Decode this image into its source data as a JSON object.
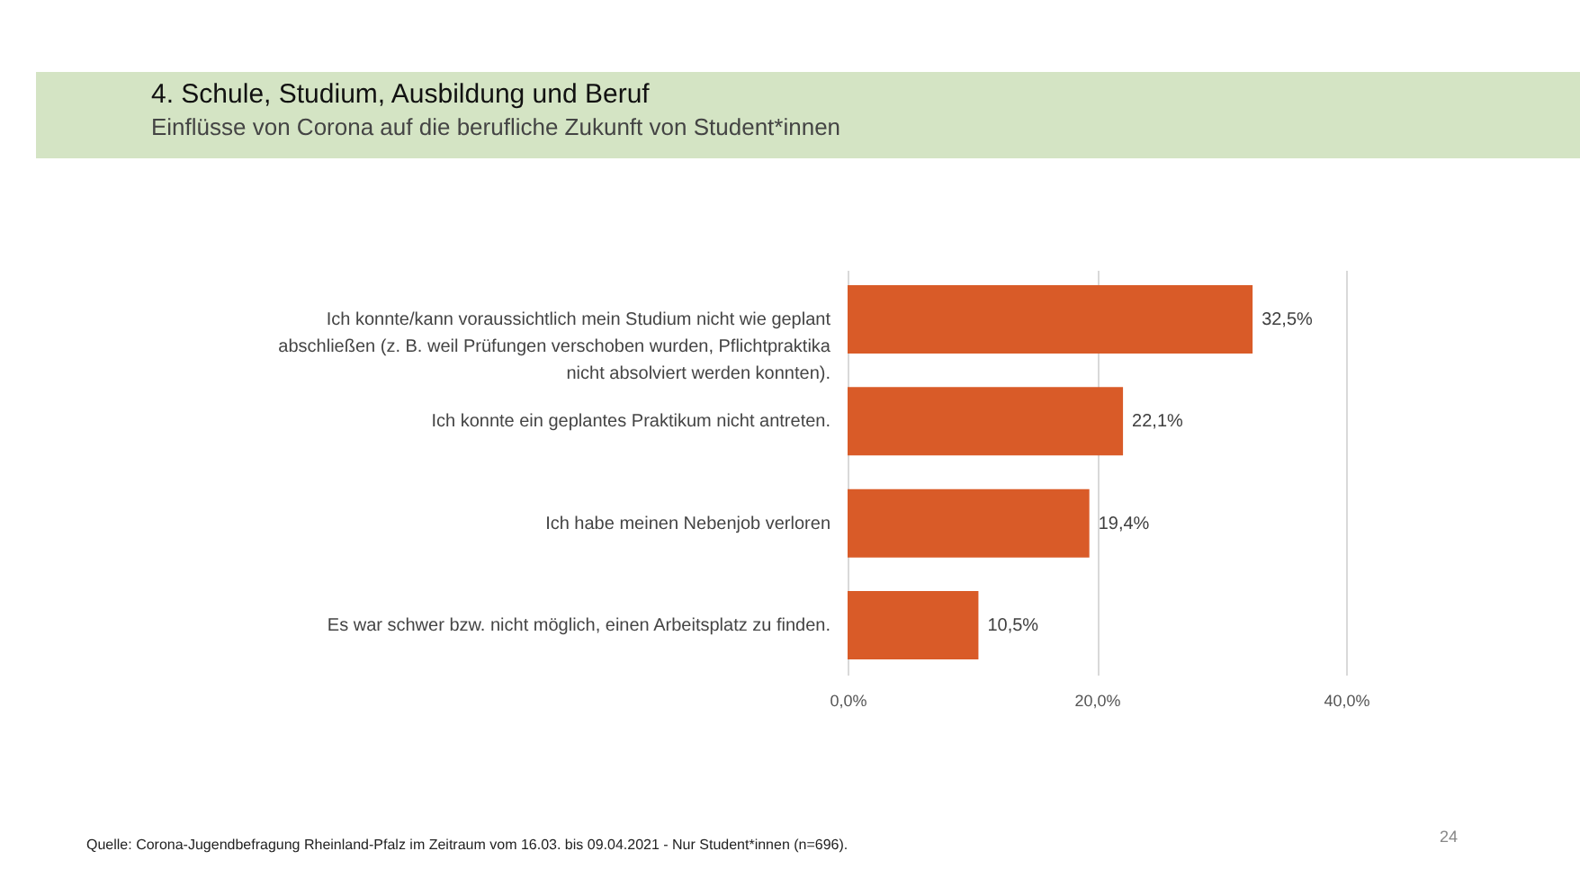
{
  "chart_data": {
    "type": "bar",
    "orientation": "horizontal",
    "title": "4. Schule, Studium, Ausbildung und Beruf",
    "subtitle": "Einflüsse von Corona auf die berufliche Zukunft von Student*innen",
    "categories": [
      "Ich konnte/kann voraussichtlich mein Studium nicht wie geplant abschließen (z. B. weil Prüfungen verschoben wurden, Pflichtpraktika nicht absolviert werden konnten).",
      "Ich konnte ein geplantes Praktikum nicht antreten.",
      "Ich habe meinen Nebenjob verloren",
      "Es war schwer bzw. nicht möglich, einen Arbeitsplatz zu finden."
    ],
    "values": [
      32.5,
      22.1,
      19.4,
      10.5
    ],
    "value_labels": [
      "32,5%",
      "22,1%",
      "19,4%",
      "10,5%"
    ],
    "color": "#d95b28",
    "xlim": [
      0,
      40
    ],
    "xticks": [
      {
        "value": 0,
        "label": "0,0%"
      },
      {
        "value": 20,
        "label": "20,0%"
      },
      {
        "value": 40,
        "label": "40,0%"
      }
    ],
    "grid": "x",
    "annotations": [
      "Quelle: Corona-Jugendbefragung Rheinland-Pfalz im Zeitraum vom 16.03. bis 09.04.2021 - Nur Student*innen (n=696).",
      "24"
    ]
  }
}
